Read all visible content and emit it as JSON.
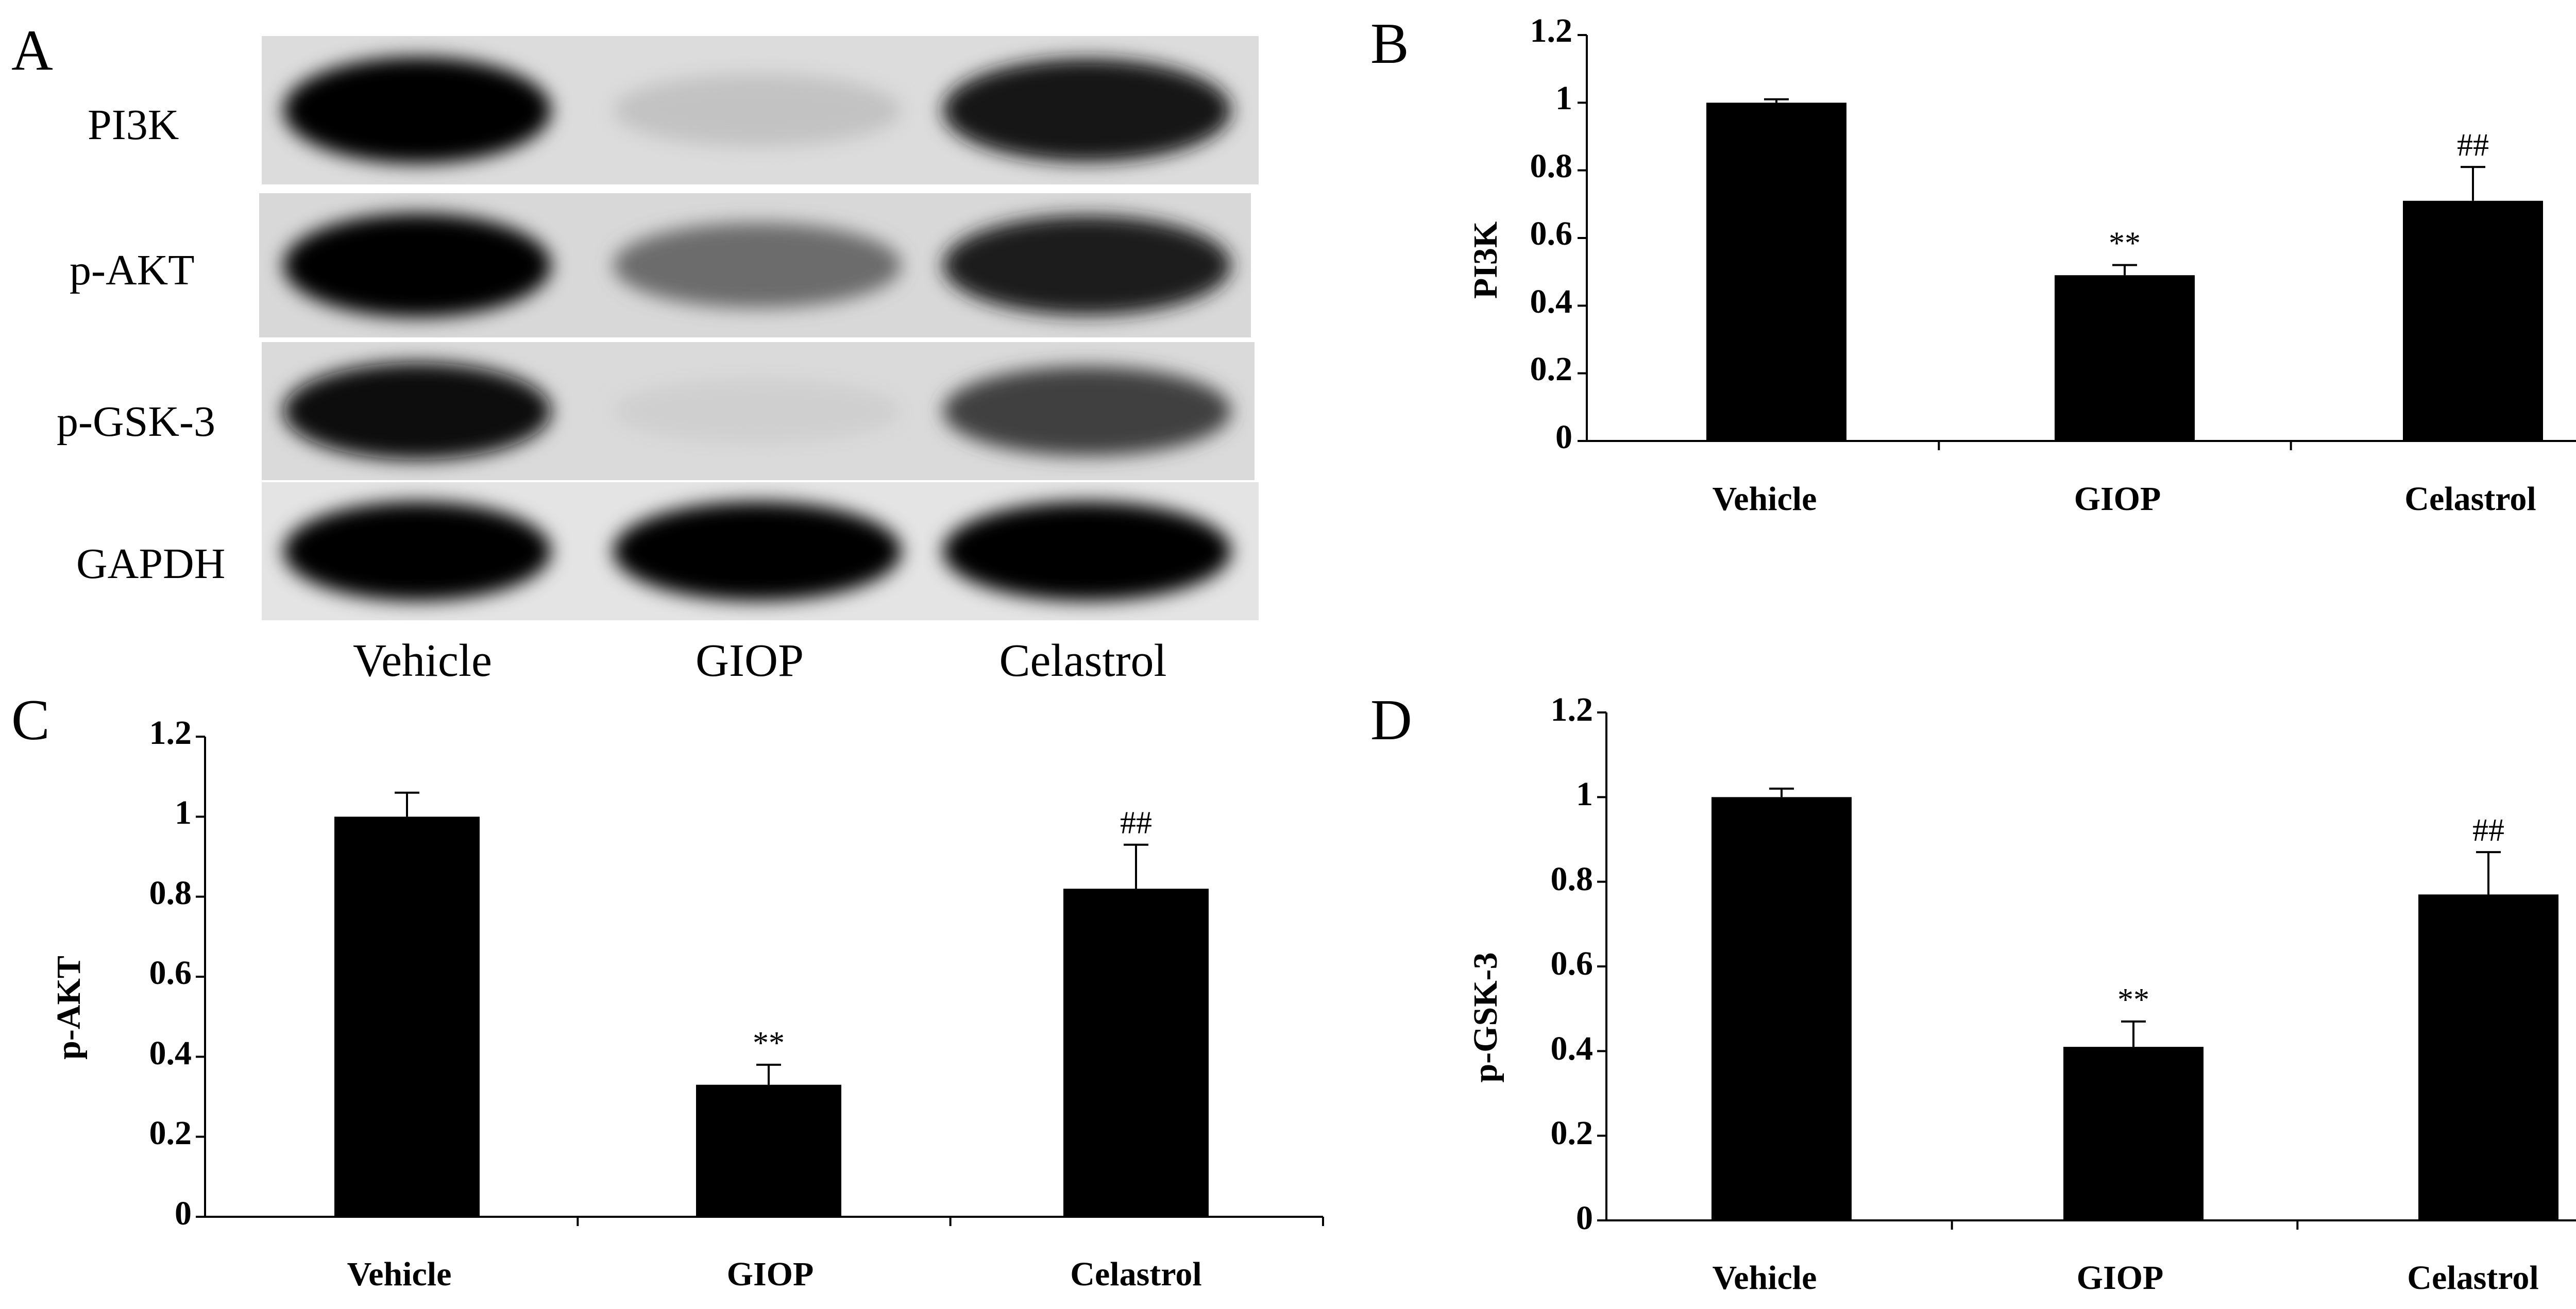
{
  "figure": {
    "panels": {
      "a": "A",
      "b": "B",
      "c": "C",
      "d": "D"
    }
  },
  "blot": {
    "proteins": [
      "PI3K",
      "p-AKT",
      "p-GSK-3",
      "GAPDH"
    ],
    "lanes": [
      "Vehicle",
      "GIOP",
      "Celastrol"
    ],
    "band_intensity": [
      [
        1.0,
        0.18,
        0.92
      ],
      [
        1.0,
        0.55,
        0.9
      ],
      [
        0.95,
        0.12,
        0.75
      ],
      [
        1.0,
        1.0,
        1.0
      ]
    ]
  },
  "chart_data": [
    {
      "panel": "B",
      "type": "bar",
      "title": "",
      "xlabel": "",
      "ylabel": "PI3K",
      "categories": [
        "Vehicle",
        "GIOP",
        "Celastrol"
      ],
      "values": [
        1.0,
        0.49,
        0.71
      ],
      "errors": [
        0.01,
        0.03,
        0.1
      ],
      "annotations": [
        "",
        "**",
        "##"
      ],
      "ylim": [
        0,
        1.2
      ],
      "yticks": [
        "0",
        "0.2",
        "0.4",
        "0.6",
        "0.8",
        "1",
        "1.2"
      ]
    },
    {
      "panel": "C",
      "type": "bar",
      "title": "",
      "xlabel": "",
      "ylabel": "p-AKT",
      "categories": [
        "Vehicle",
        "GIOP",
        "Celastrol"
      ],
      "values": [
        1.0,
        0.33,
        0.82
      ],
      "errors": [
        0.06,
        0.05,
        0.11
      ],
      "annotations": [
        "",
        "**",
        "##"
      ],
      "ylim": [
        0,
        1.2
      ],
      "yticks": [
        "0",
        "0.2",
        "0.4",
        "0.6",
        "0.8",
        "1",
        "1.2"
      ]
    },
    {
      "panel": "D",
      "type": "bar",
      "title": "",
      "xlabel": "",
      "ylabel": "p-GSK-3",
      "categories": [
        "Vehicle",
        "GIOP",
        "Celastrol"
      ],
      "values": [
        1.0,
        0.41,
        0.77
      ],
      "errors": [
        0.02,
        0.06,
        0.1
      ],
      "annotations": [
        "",
        "**",
        "##"
      ],
      "ylim": [
        0,
        1.2
      ],
      "yticks": [
        "0",
        "0.2",
        "0.4",
        "0.6",
        "0.8",
        "1",
        "1.2"
      ]
    }
  ]
}
